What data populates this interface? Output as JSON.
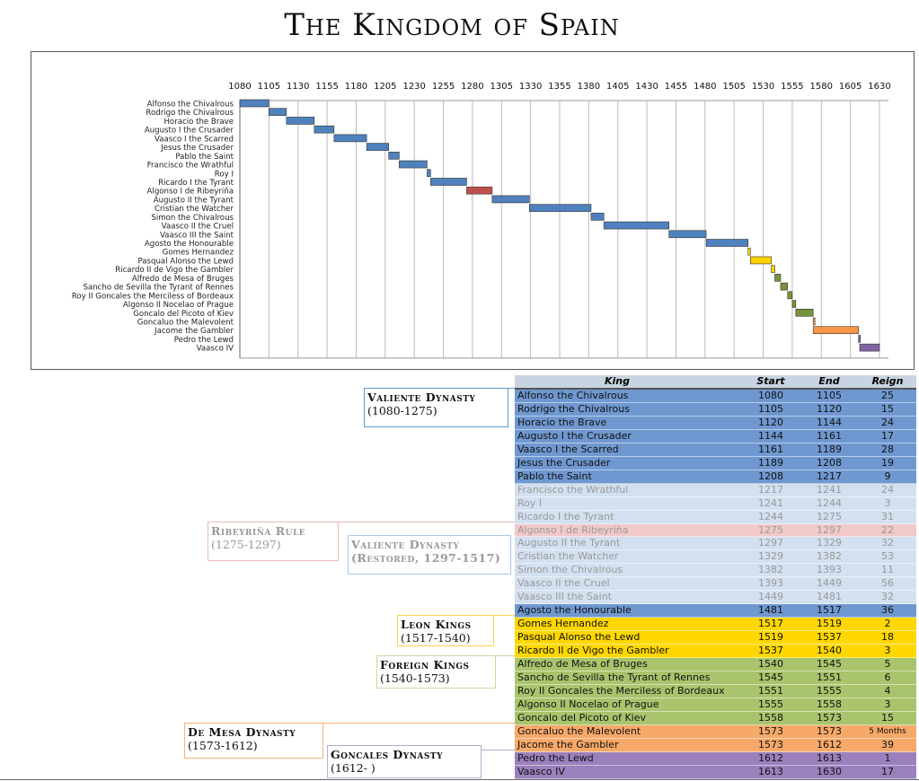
{
  "title": "The Kingdom of Spain",
  "chart_data": {
    "type": "gantt",
    "xlim": [
      1080,
      1630
    ],
    "x_ticks": [
      1080,
      1105,
      1130,
      1155,
      1180,
      1205,
      1230,
      1255,
      1280,
      1305,
      1330,
      1355,
      1380,
      1405,
      1430,
      1455,
      1480,
      1505,
      1530,
      1555,
      1580,
      1605,
      1630
    ],
    "grid": true,
    "group_colors": {
      "valiente": "#4f81bd",
      "faded": "#4f81bd",
      "ribeyrina": "#c0504d",
      "restored": "#4f81bd",
      "leon": "#ffd200",
      "foreign": "#76923c",
      "demesa": "#f79646",
      "goncales": "#8064a2"
    },
    "table_colors": {
      "valiente": "#6f98d0",
      "faded": "#d3e0f0",
      "ribeyrina": "#f2c9c9",
      "restored": "#d3e0f0",
      "restored_dark": "#6f98d0",
      "leon": "#ffd700",
      "foreign": "#a9c46c",
      "demesa": "#f7a96a",
      "goncales": "#9a80bc"
    },
    "kings": [
      {
        "name": "Alfonso the Chivalrous",
        "start": 1080,
        "end": 1105,
        "reign": "25",
        "group": "valiente"
      },
      {
        "name": "Rodrigo the Chivalrous",
        "start": 1105,
        "end": 1120,
        "reign": "15",
        "group": "valiente"
      },
      {
        "name": "Horacio the Brave",
        "start": 1120,
        "end": 1144,
        "reign": "24",
        "group": "valiente"
      },
      {
        "name": "Augusto I the Crusader",
        "start": 1144,
        "end": 1161,
        "reign": "17",
        "group": "valiente"
      },
      {
        "name": "Vaasco I the Scarred",
        "start": 1161,
        "end": 1189,
        "reign": "28",
        "group": "valiente"
      },
      {
        "name": "Jesus the Crusader",
        "start": 1189,
        "end": 1208,
        "reign": "19",
        "group": "valiente"
      },
      {
        "name": "Pablo the Saint",
        "start": 1208,
        "end": 1217,
        "reign": "9",
        "group": "valiente"
      },
      {
        "name": "Francisco the Wrathful",
        "start": 1217,
        "end": 1241,
        "reign": "24",
        "group": "faded"
      },
      {
        "name": "Roy I",
        "start": 1241,
        "end": 1244,
        "reign": "3",
        "group": "faded"
      },
      {
        "name": "Ricardo I the Tyrant",
        "start": 1244,
        "end": 1275,
        "reign": "31",
        "group": "faded"
      },
      {
        "name": "Algonso I de Ribeyriña",
        "start": 1275,
        "end": 1297,
        "reign": "22",
        "group": "ribeyrina"
      },
      {
        "name": "Augusto II the Tyrant",
        "start": 1297,
        "end": 1329,
        "reign": "32",
        "group": "restored"
      },
      {
        "name": "Cristian the Watcher",
        "start": 1329,
        "end": 1382,
        "reign": "53",
        "group": "restored"
      },
      {
        "name": "Simon the Chivalrous",
        "start": 1382,
        "end": 1393,
        "reign": "11",
        "group": "restored"
      },
      {
        "name": "Vaasco II the Cruel",
        "start": 1393,
        "end": 1449,
        "reign": "56",
        "group": "restored"
      },
      {
        "name": "Vaasco III the Saint",
        "start": 1449,
        "end": 1481,
        "reign": "32",
        "group": "restored"
      },
      {
        "name": "Agosto the Honourable",
        "start": 1481,
        "end": 1517,
        "reign": "36",
        "group": "restored_dark"
      },
      {
        "name": "Gomes Hernandez",
        "start": 1517,
        "end": 1519,
        "reign": "2",
        "group": "leon"
      },
      {
        "name": "Pasqual Alonso the Lewd",
        "start": 1519,
        "end": 1537,
        "reign": "18",
        "group": "leon"
      },
      {
        "name": "Ricardo II de Vigo the Gambler",
        "start": 1537,
        "end": 1540,
        "reign": "3",
        "group": "leon"
      },
      {
        "name": "Alfredo de Mesa of Bruges",
        "start": 1540,
        "end": 1545,
        "reign": "5",
        "group": "foreign"
      },
      {
        "name": "Sancho de Sevilla the Tyrant of Rennes",
        "start": 1545,
        "end": 1551,
        "reign": "6",
        "group": "foreign"
      },
      {
        "name": "Roy II Goncales the Merciless of Bordeaux",
        "start": 1551,
        "end": 1555,
        "reign": "4",
        "group": "foreign"
      },
      {
        "name": "Algonso II Nocelao of Prague",
        "start": 1555,
        "end": 1558,
        "reign": "3",
        "group": "foreign"
      },
      {
        "name": "Goncalo del Picoto of Kiev",
        "start": 1558,
        "end": 1573,
        "reign": "15",
        "group": "foreign"
      },
      {
        "name": "Goncaluo the Malevolent",
        "start": 1573,
        "end": 1573,
        "reign": "5 Months",
        "group": "demesa"
      },
      {
        "name": "Jacome the Gambler",
        "start": 1573,
        "end": 1612,
        "reign": "39",
        "group": "demesa"
      },
      {
        "name": "Pedro the Lewd",
        "start": 1612,
        "end": 1613,
        "reign": "1",
        "group": "goncales"
      },
      {
        "name": "Vaasco IV",
        "start": 1613,
        "end": 1630,
        "reign": "17",
        "group": "goncales"
      }
    ]
  },
  "table": {
    "headers": [
      "King",
      "Start",
      "End",
      "Reign"
    ]
  },
  "dynasties": [
    {
      "name": "Valiente Dynasty",
      "years": "(1080-1275)"
    },
    {
      "name": "Ribeyriña Rule",
      "years": "(1275-1297)"
    },
    {
      "name": "Valiente Dynasty",
      "years": "(Restored, 1297-1517)"
    },
    {
      "name": "Leon Kings",
      "years": "(1517-1540)"
    },
    {
      "name": "Foreign Kings",
      "years": "(1540-1573)"
    },
    {
      "name": "De Mesa Dynasty",
      "years": "(1573-1612)"
    },
    {
      "name": "Goncales Dynasty",
      "years": "(1612-     )"
    }
  ]
}
